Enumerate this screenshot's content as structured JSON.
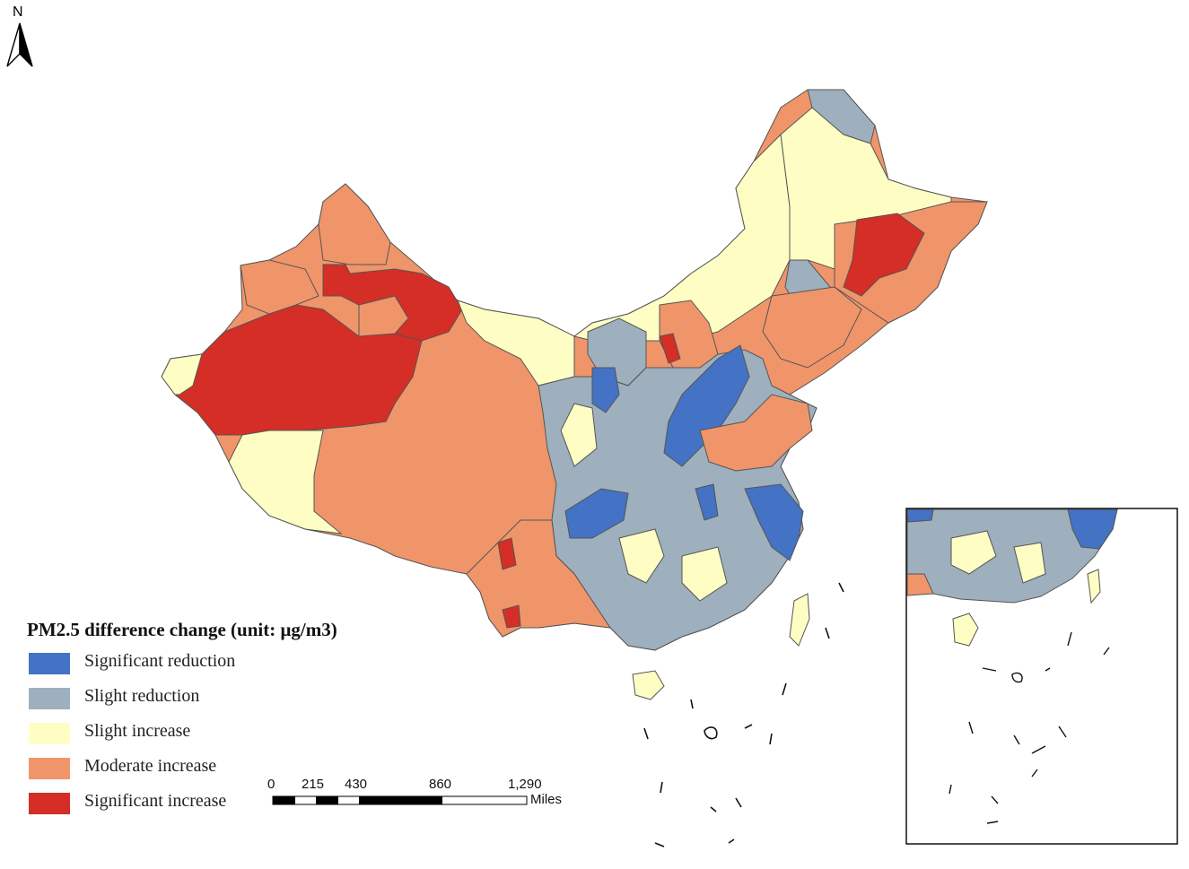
{
  "north_arrow": {
    "label": "N"
  },
  "legend": {
    "title": "PM2.5 difference change (unit: μg/m3)",
    "items": [
      {
        "label": "Significant reduction",
        "color": "#4472c4"
      },
      {
        "label": "Slight reduction",
        "color": "#9eafbd"
      },
      {
        "label": "Slight increase",
        "color": "#fefec4"
      },
      {
        "label": "Moderate increase",
        "color": "#f0956a"
      },
      {
        "label": "Significant increase",
        "color": "#d42e26"
      }
    ]
  },
  "scale_bar": {
    "ticks": [
      "0",
      "215",
      "430",
      "860",
      "1,290"
    ],
    "unit": "Miles"
  }
}
